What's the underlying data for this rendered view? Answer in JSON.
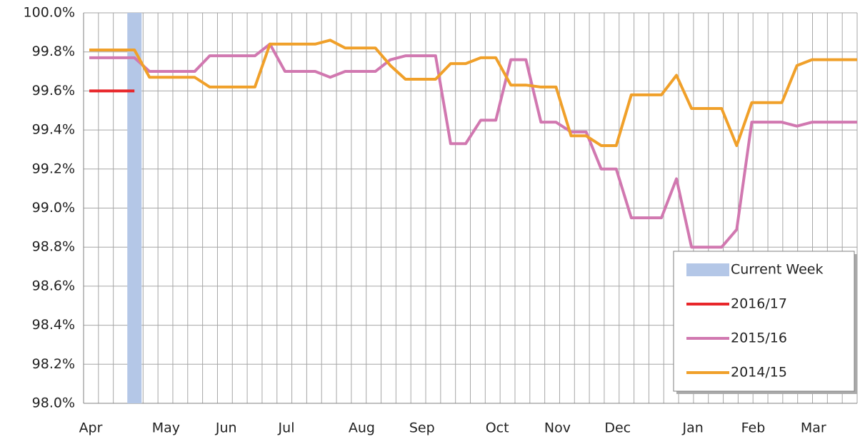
{
  "chart_data": {
    "type": "line",
    "categories": [
      "Apr",
      null,
      null,
      null,
      null,
      "May",
      null,
      null,
      null,
      "Jun",
      null,
      null,
      null,
      "Jul",
      null,
      null,
      null,
      null,
      "Aug",
      null,
      null,
      null,
      "Sep",
      null,
      null,
      null,
      null,
      "Oct",
      null,
      null,
      null,
      "Nov",
      null,
      null,
      null,
      "Dec",
      null,
      null,
      null,
      null,
      "Jan",
      null,
      null,
      null,
      "Feb",
      null,
      null,
      null,
      "Mar",
      null,
      null,
      null
    ],
    "series": [
      {
        "name": "Current Week",
        "kind": "bar",
        "color": "#b4c7e7",
        "values": [
          null,
          null,
          null,
          100.0,
          null,
          null,
          null,
          null,
          null,
          null,
          null,
          null,
          null,
          null,
          null,
          null,
          null,
          null,
          null,
          null,
          null,
          null,
          null,
          null,
          null,
          null,
          null,
          null,
          null,
          null,
          null,
          null,
          null,
          null,
          null,
          null,
          null,
          null,
          null,
          null,
          null,
          null,
          null,
          null,
          null,
          null,
          null,
          null,
          null,
          null,
          null,
          null
        ]
      },
      {
        "name": "2016/17",
        "kind": "line",
        "color": "#e8262a",
        "values": [
          99.6,
          99.6,
          99.6,
          99.6,
          null,
          null,
          null,
          null,
          null,
          null,
          null,
          null,
          null,
          null,
          null,
          null,
          null,
          null,
          null,
          null,
          null,
          null,
          null,
          null,
          null,
          null,
          null,
          null,
          null,
          null,
          null,
          null,
          null,
          null,
          null,
          null,
          null,
          null,
          null,
          null,
          null,
          null,
          null,
          null,
          null,
          null,
          null,
          null,
          null,
          null,
          null,
          null
        ]
      },
      {
        "name": "2015/16",
        "kind": "line",
        "color": "#d178b0",
        "values": [
          99.77,
          99.77,
          99.77,
          99.77,
          99.7,
          99.7,
          99.7,
          99.7,
          99.78,
          99.78,
          99.78,
          99.78,
          99.84,
          99.7,
          99.7,
          99.7,
          99.67,
          99.7,
          99.7,
          99.7,
          99.76,
          99.78,
          99.78,
          99.78,
          99.33,
          99.33,
          99.45,
          99.45,
          99.76,
          99.76,
          99.44,
          99.44,
          99.39,
          99.39,
          99.2,
          99.2,
          98.95,
          98.95,
          98.95,
          99.15,
          98.8,
          98.8,
          98.8,
          98.89,
          99.44,
          99.44,
          99.44,
          99.42,
          99.44,
          99.44,
          99.44,
          99.44
        ]
      },
      {
        "name": "2014/15",
        "kind": "line",
        "color": "#f0a02a",
        "values": [
          99.81,
          99.81,
          99.81,
          99.81,
          99.67,
          99.67,
          99.67,
          99.67,
          99.62,
          99.62,
          99.62,
          99.62,
          99.84,
          99.84,
          99.84,
          99.84,
          99.86,
          99.82,
          99.82,
          99.82,
          99.73,
          99.66,
          99.66,
          99.66,
          99.74,
          99.74,
          99.77,
          99.77,
          99.63,
          99.63,
          99.62,
          99.62,
          99.37,
          99.37,
          99.32,
          99.32,
          99.58,
          99.58,
          99.58,
          99.68,
          99.51,
          99.51,
          99.51,
          99.32,
          99.54,
          99.54,
          99.54,
          99.73,
          99.76,
          99.76,
          99.76,
          99.76
        ]
      }
    ],
    "ylim": [
      98.0,
      100.0
    ],
    "yticks": [
      {
        "value": 98.0,
        "label": "98.0%"
      },
      {
        "value": 98.2,
        "label": "98.2%"
      },
      {
        "value": 98.4,
        "label": "98.4%"
      },
      {
        "value": 98.6,
        "label": "98.6%"
      },
      {
        "value": 98.8,
        "label": "98.8%"
      },
      {
        "value": 99.0,
        "label": "99.0%"
      },
      {
        "value": 99.2,
        "label": "99.2%"
      },
      {
        "value": 99.4,
        "label": "99.4%"
      },
      {
        "value": 99.6,
        "label": "99.6%"
      },
      {
        "value": 99.8,
        "label": "99.8%"
      },
      {
        "value": 100.0,
        "label": "100.0%"
      }
    ],
    "grid": true,
    "legend": "lower right"
  }
}
